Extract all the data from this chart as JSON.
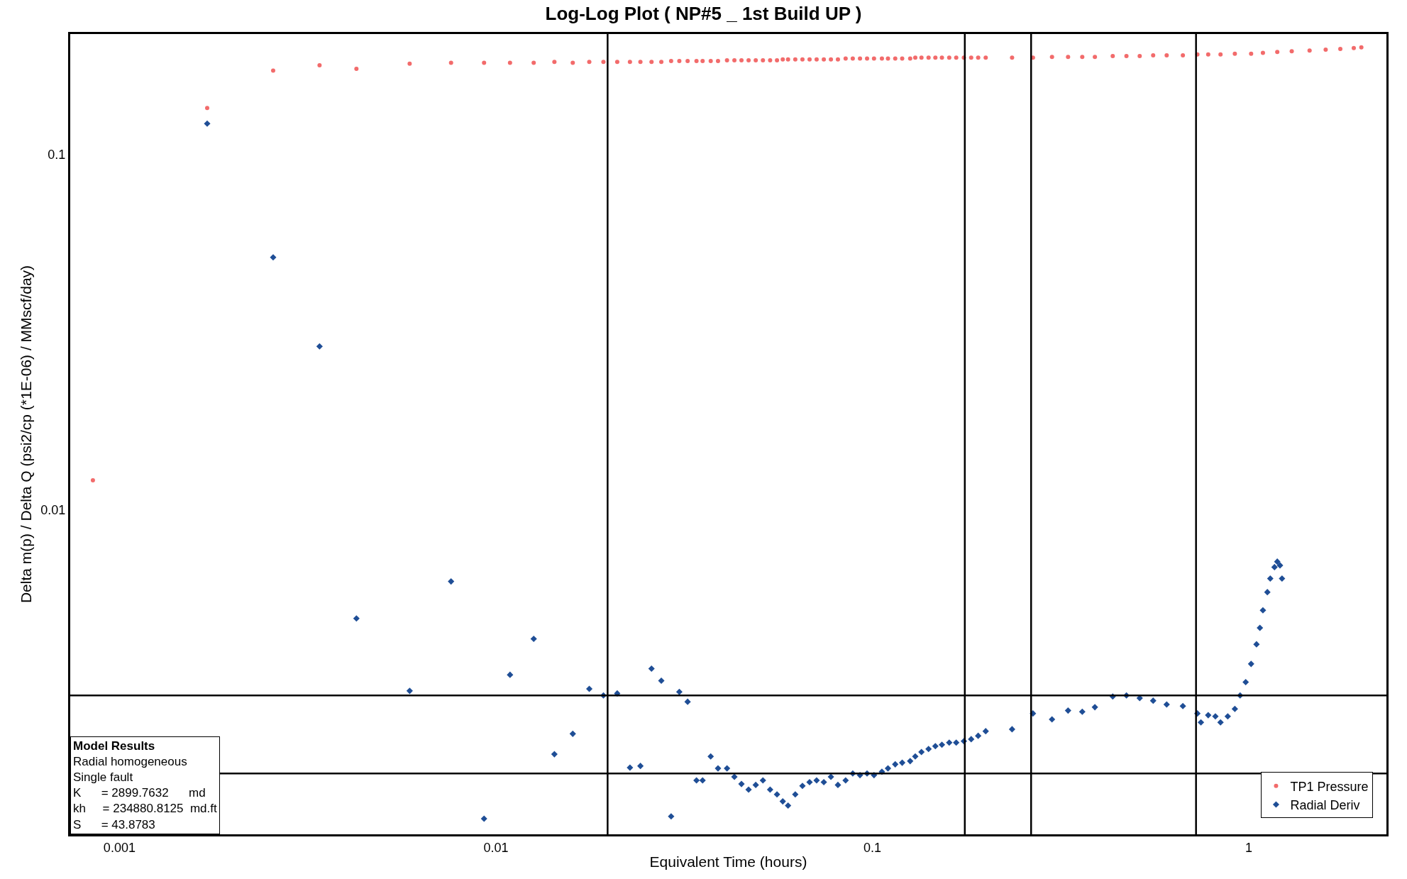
{
  "chart_data": {
    "type": "scatter",
    "title": "Log-Log Plot ( NP#5 _ 1st Build UP )",
    "xlabel": "Equivalent Time (hours)",
    "ylabel": "Delta m(p) / Delta Q (psi2/cp (*1E-06) / MMscf/day)",
    "log": "xy",
    "xlim": [
      0.00074,
      2.32
    ],
    "ylim": [
      0.00122,
      0.218
    ],
    "xticks": [
      0.001,
      0.01,
      0.1,
      1
    ],
    "yticks": [
      0.01,
      0.1
    ],
    "legend": "bottom right",
    "series": [
      {
        "name": "TP1 Pressure",
        "color": "#f26b6b",
        "marker": "circle",
        "x": [
          0.00085,
          0.00171,
          0.00256,
          0.0034,
          0.00426,
          0.0059,
          0.0076,
          0.0093,
          0.0109,
          0.0126,
          0.0143,
          0.016,
          0.0177,
          0.0193,
          0.021,
          0.0227,
          0.0242,
          0.0259,
          0.0275,
          0.0292,
          0.0307,
          0.0323,
          0.0341,
          0.0354,
          0.0372,
          0.0389,
          0.0411,
          0.043,
          0.0449,
          0.0469,
          0.049,
          0.0512,
          0.0535,
          0.0558,
          0.0578,
          0.0597,
          0.0624,
          0.0652,
          0.0681,
          0.0711,
          0.0743,
          0.0776,
          0.081,
          0.0849,
          0.0887,
          0.0927,
          0.0968,
          0.101,
          0.106,
          0.11,
          0.115,
          0.12,
          0.126,
          0.13,
          0.135,
          0.141,
          0.147,
          0.153,
          0.16,
          0.167,
          0.175,
          0.183,
          0.191,
          0.2,
          0.235,
          0.267,
          0.3,
          0.331,
          0.361,
          0.39,
          0.435,
          0.473,
          0.513,
          0.557,
          0.605,
          0.668,
          0.73,
          0.78,
          0.841,
          0.918,
          1.014,
          1.09,
          1.19,
          1.3,
          1.45,
          1.6,
          1.75,
          1.9,
          1.99
        ],
        "values": [
          0.0121,
          0.135,
          0.172,
          0.178,
          0.174,
          0.18,
          0.181,
          0.181,
          0.181,
          0.181,
          0.182,
          0.181,
          0.182,
          0.182,
          0.182,
          0.182,
          0.182,
          0.182,
          0.182,
          0.183,
          0.183,
          0.183,
          0.183,
          0.183,
          0.183,
          0.183,
          0.184,
          0.184,
          0.184,
          0.184,
          0.184,
          0.184,
          0.184,
          0.184,
          0.185,
          0.185,
          0.185,
          0.185,
          0.185,
          0.185,
          0.185,
          0.185,
          0.185,
          0.186,
          0.186,
          0.186,
          0.186,
          0.186,
          0.186,
          0.186,
          0.186,
          0.186,
          0.186,
          0.187,
          0.187,
          0.187,
          0.187,
          0.187,
          0.187,
          0.187,
          0.187,
          0.187,
          0.187,
          0.187,
          0.187,
          0.187,
          0.188,
          0.188,
          0.188,
          0.188,
          0.189,
          0.189,
          0.189,
          0.19,
          0.19,
          0.19,
          0.191,
          0.191,
          0.191,
          0.192,
          0.192,
          0.193,
          0.194,
          0.195,
          0.196,
          0.197,
          0.198,
          0.199,
          0.2
        ]
      },
      {
        "name": "Radial Deriv",
        "color": "#1f4e96",
        "marker": "diamond",
        "x": [
          0.00171,
          0.00256,
          0.0034,
          0.00426,
          0.0059,
          0.0076,
          0.0093,
          0.0109,
          0.0126,
          0.0143,
          0.016,
          0.0177,
          0.0193,
          0.021,
          0.0227,
          0.0242,
          0.0259,
          0.0275,
          0.0292,
          0.0307,
          0.0323,
          0.0341,
          0.0354,
          0.0372,
          0.0389,
          0.0411,
          0.043,
          0.0449,
          0.0469,
          0.049,
          0.0512,
          0.0535,
          0.0558,
          0.0578,
          0.0597,
          0.0624,
          0.0652,
          0.0681,
          0.0711,
          0.0743,
          0.0776,
          0.081,
          0.0849,
          0.0887,
          0.0927,
          0.0968,
          0.101,
          0.106,
          0.11,
          0.115,
          0.12,
          0.126,
          0.13,
          0.135,
          0.141,
          0.147,
          0.153,
          0.16,
          0.167,
          0.175,
          0.183,
          0.191,
          0.2,
          0.235,
          0.267,
          0.3,
          0.331,
          0.361,
          0.39,
          0.435,
          0.473,
          0.513,
          0.557,
          0.605,
          0.668,
          0.73,
          0.746,
          0.78,
          0.815,
          0.841,
          0.879,
          0.918,
          0.948,
          0.981,
          1.014,
          1.048,
          1.07,
          1.09,
          1.12,
          1.14,
          1.17,
          1.19,
          1.21,
          1.225
        ],
        "values": [
          0.122,
          0.0513,
          0.0288,
          0.00494,
          0.00309,
          0.00628,
          0.00135,
          0.00343,
          0.00433,
          0.00205,
          0.00234,
          0.00313,
          0.003,
          0.00304,
          0.00188,
          0.0019,
          0.00357,
          0.0033,
          0.00137,
          0.00307,
          0.00288,
          0.00173,
          0.00173,
          0.00202,
          0.00187,
          0.00187,
          0.00177,
          0.00169,
          0.00163,
          0.00168,
          0.00173,
          0.00163,
          0.00158,
          0.00151,
          0.00147,
          0.00158,
          0.00167,
          0.00171,
          0.00173,
          0.00171,
          0.00177,
          0.00168,
          0.00173,
          0.00181,
          0.00179,
          0.00181,
          0.00179,
          0.00183,
          0.00187,
          0.00192,
          0.00194,
          0.00196,
          0.00202,
          0.00208,
          0.00212,
          0.00216,
          0.00218,
          0.00221,
          0.00221,
          0.00223,
          0.00226,
          0.00231,
          0.00238,
          0.00241,
          0.00267,
          0.00257,
          0.00272,
          0.0027,
          0.00278,
          0.00298,
          0.003,
          0.00295,
          0.0029,
          0.00283,
          0.0028,
          0.00267,
          0.00252,
          0.00264,
          0.00262,
          0.00252,
          0.00262,
          0.00275,
          0.003,
          0.00327,
          0.00368,
          0.00418,
          0.00465,
          0.00521,
          0.00586,
          0.0064,
          0.00689,
          0.00714,
          0.00697,
          0.0064
        ]
      }
    ],
    "ref_lines": [
      {
        "axis": "x",
        "value": 0.0198,
        "color": "#000000"
      },
      {
        "axis": "x",
        "value": 0.176,
        "color": "#000000"
      },
      {
        "axis": "x",
        "value": 0.264,
        "color": "#000000"
      },
      {
        "axis": "x",
        "value": 0.724,
        "color": "#000000"
      },
      {
        "axis": "y",
        "value": 0.003,
        "color": "#000000"
      },
      {
        "axis": "y",
        "value": 0.00181,
        "color": "#000000"
      }
    ],
    "annotations": [
      "Model Results",
      "Radial homogeneous",
      "Single fault",
      "K      = 2899.7632      md",
      "kh     = 234880.8125  md.ft",
      "S      = 43.8783"
    ]
  }
}
